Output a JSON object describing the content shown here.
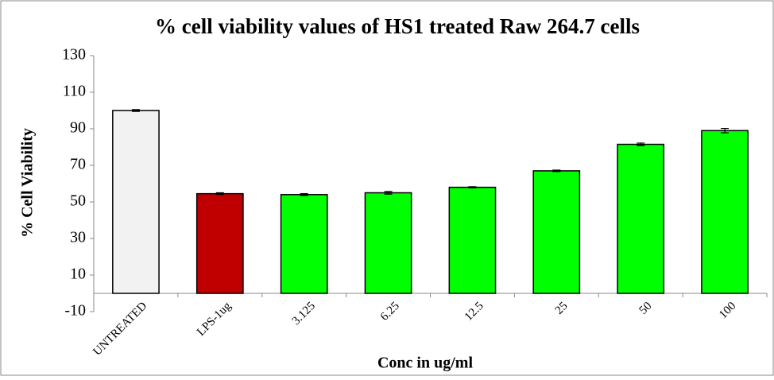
{
  "chart_data": {
    "type": "bar",
    "title": "% cell viability values of  HS1 treated Raw 264.7 cells",
    "x_label": "Conc in ug/ml",
    "y_label": "%  Cell Viability",
    "categories": [
      "UNTREATED",
      "LPS-1ug",
      "3.125",
      "6.25",
      "12.5",
      "25",
      "50",
      "100"
    ],
    "values": [
      100,
      54.5,
      54,
      55,
      58,
      67,
      81.5,
      89
    ],
    "errors": [
      0.5,
      0.5,
      0.5,
      0.7,
      0.3,
      0.4,
      0.7,
      1.2
    ],
    "colors": [
      "#f2f2f2",
      "#c00000",
      "#00ff00",
      "#00ff00",
      "#00ff00",
      "#00ff00",
      "#00ff00",
      "#00ff00"
    ],
    "ylim": [
      -10,
      130
    ],
    "yticks": [
      -10,
      10,
      30,
      50,
      70,
      90,
      110,
      130
    ],
    "grid": false
  }
}
